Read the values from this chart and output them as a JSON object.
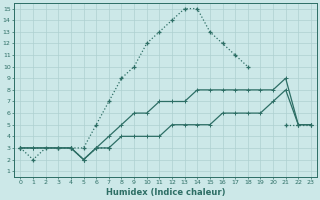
{
  "xlabel": "Humidex (Indice chaleur)",
  "background_color": "#cce8e8",
  "line_color": "#2d6e65",
  "grid_color": "#aed0d0",
  "xlim": [
    -0.5,
    23.5
  ],
  "ylim": [
    0.5,
    15.5
  ],
  "xticks": [
    0,
    1,
    2,
    3,
    4,
    5,
    6,
    7,
    8,
    9,
    10,
    11,
    12,
    13,
    14,
    15,
    16,
    17,
    18,
    19,
    20,
    21,
    22,
    23
  ],
  "yticks": [
    1,
    2,
    3,
    4,
    5,
    6,
    7,
    8,
    9,
    10,
    11,
    12,
    13,
    14,
    15
  ],
  "line1_x": [
    0,
    1,
    2,
    3,
    4,
    5,
    6,
    7,
    8,
    9,
    10,
    11,
    12,
    13,
    14,
    15,
    16,
    17,
    18
  ],
  "line1_y": [
    3,
    2,
    3,
    3,
    3,
    3,
    5,
    7,
    9,
    10,
    12,
    13,
    14,
    15,
    15,
    13,
    12,
    11,
    10
  ],
  "line1_style": "dotted",
  "line2_x": [
    0,
    3,
    4,
    5,
    6,
    7,
    21,
    22,
    23
  ],
  "line2_y": [
    3,
    3,
    3,
    2,
    3,
    3,
    5,
    5,
    5
  ],
  "line2_style": "dotted",
  "line3_x": [
    0,
    1,
    4,
    5,
    6,
    7,
    8,
    9,
    10,
    11,
    12,
    13,
    14,
    15,
    16,
    17,
    18,
    19,
    20,
    21,
    22,
    23
  ],
  "line3_y": [
    3,
    3,
    3,
    2,
    3,
    4,
    5,
    6,
    6,
    7,
    7,
    7,
    8,
    8,
    8,
    8,
    8,
    8,
    8,
    9,
    5,
    5
  ],
  "line3_style": "solid",
  "line4_x": [
    0,
    1,
    4,
    5,
    6,
    7,
    8,
    9,
    10,
    11,
    12,
    13,
    14,
    15,
    16,
    17,
    18,
    19,
    20,
    21,
    22,
    23
  ],
  "line4_y": [
    3,
    3,
    3,
    2,
    3,
    3,
    4,
    4,
    4,
    4,
    5,
    5,
    5,
    5,
    6,
    6,
    6,
    6,
    7,
    8,
    5,
    5
  ],
  "line4_style": "solid"
}
